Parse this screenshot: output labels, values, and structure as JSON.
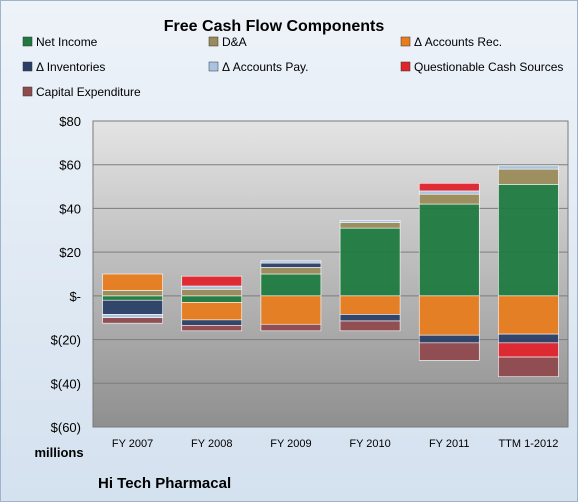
{
  "chart_data": {
    "type": "bar",
    "stacked": "diverging",
    "title": "Free Cash Flow Components",
    "ylabel": "millions",
    "company": "Hi Tech Pharmacal",
    "categories": [
      "FY 2007",
      "FY 2008",
      "FY 2009",
      "FY 2010",
      "FY 2011",
      "TTM 1-2012"
    ],
    "ylim": [
      -60,
      80
    ],
    "yticks": [
      80,
      60,
      40,
      20,
      0,
      -20,
      -40,
      -60
    ],
    "ytick_labels": [
      "$80",
      "$60",
      "$40",
      "$20",
      "$-",
      "$(20)",
      "$(40)",
      "$(60)"
    ],
    "grid": true,
    "legend_position": "top",
    "series": [
      {
        "name": "Net Income",
        "color": "#1f7a3f",
        "values": [
          -2,
          -3,
          10,
          31,
          42,
          51
        ]
      },
      {
        "name": "D&A",
        "color": "#9a8b5a",
        "values": [
          2.5,
          3,
          3,
          2.5,
          4.5,
          7
        ]
      },
      {
        "name": "Δ Accounts Rec.",
        "color": "#e87c1e",
        "values": [
          7.5,
          -8,
          -13,
          -8.5,
          -18,
          -17.5
        ]
      },
      {
        "name": "Δ Inventories",
        "color": "#2b3f66",
        "values": [
          -6.5,
          -2.5,
          2,
          -3,
          -3.5,
          -4
        ]
      },
      {
        "name": "Δ Accounts Pay.",
        "color": "#a9c4e2",
        "values": [
          -1.5,
          1.5,
          1,
          1,
          1.5,
          1.5
        ]
      },
      {
        "name": "Questionable Cash Sources",
        "color": "#e0242c",
        "values": [
          0,
          4.5,
          0,
          0,
          3.5,
          -6.5
        ]
      },
      {
        "name": "Capital Expenditure",
        "color": "#8f4a4e",
        "values": [
          -2.5,
          -2.5,
          -3,
          -4.5,
          -8,
          -9
        ]
      }
    ]
  }
}
